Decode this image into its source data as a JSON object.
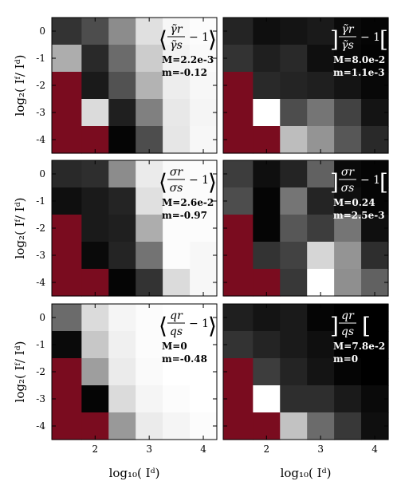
{
  "figure": {
    "ylabel_left": "log₂( Iᶠ/ Iᵈ)",
    "xlabel_bottom": "log₁₀( Iᵈ)"
  },
  "colors": {
    "masked": "#7a0c1f",
    "frame": "#000000"
  },
  "chart_data": [
    {
      "type": "heatmap",
      "row": 0,
      "col": 0,
      "formula": {
        "left": "⟨",
        "num": "γ̃r",
        "den": "γ̃s",
        "tail": "− 1",
        "right": "⟩"
      },
      "stats": [
        "M=2.2e-3",
        "m=-0.12"
      ],
      "theme": "light",
      "x": [
        1.5,
        2.0,
        2.5,
        3.0,
        3.5,
        4.0
      ],
      "y": [
        0,
        -1,
        -2,
        -3,
        -4
      ],
      "xticks": [
        2,
        3,
        4
      ],
      "yticks": [
        0,
        -1,
        -2,
        -3,
        -4
      ],
      "values": [
        [
          0.2,
          0.3,
          0.55,
          0.88,
          0.97,
          0.99
        ],
        [
          0.68,
          0.16,
          0.42,
          0.8,
          0.95,
          0.98
        ],
        [
          null,
          0.1,
          0.32,
          0.7,
          0.93,
          0.97
        ],
        [
          null,
          0.86,
          0.12,
          0.5,
          0.91,
          0.96
        ],
        [
          null,
          null,
          0.02,
          0.3,
          0.9,
          0.97
        ]
      ]
    },
    {
      "type": "heatmap",
      "row": 0,
      "col": 1,
      "formula": {
        "left": "]",
        "num": "γ̃r",
        "den": "γ̃s",
        "tail": "− 1",
        "right": "["
      },
      "stats": [
        "M=8.0e-2",
        "m=1.1e-3"
      ],
      "theme": "dark",
      "x": [
        1.5,
        2.0,
        2.5,
        3.0,
        3.5,
        4.0
      ],
      "y": [
        0,
        -1,
        -2,
        -3,
        -4
      ],
      "xticks": [
        2,
        3,
        4
      ],
      "yticks": [
        0,
        -1,
        -2,
        -3,
        -4
      ],
      "values": [
        [
          0.14,
          0.06,
          0.08,
          0.1,
          0.04,
          0.02
        ],
        [
          0.2,
          0.12,
          0.16,
          0.06,
          0.03,
          0.01
        ],
        [
          null,
          0.16,
          0.14,
          0.12,
          0.08,
          0.03
        ],
        [
          null,
          1.0,
          0.3,
          0.46,
          0.26,
          0.08
        ],
        [
          null,
          null,
          0.74,
          0.58,
          0.34,
          0.16
        ]
      ]
    },
    {
      "type": "heatmap",
      "row": 1,
      "col": 0,
      "formula": {
        "left": "⟨",
        "num": "σr",
        "den": "σs",
        "tail": "− 1",
        "right": "⟩"
      },
      "stats": [
        "M=2.6e-2",
        "m=-0.97"
      ],
      "theme": "light",
      "x": [
        1.5,
        2.0,
        2.5,
        3.0,
        3.5,
        4.0
      ],
      "y": [
        0,
        -1,
        -2,
        -3,
        -4
      ],
      "xticks": [
        2,
        3,
        4
      ],
      "yticks": [
        0,
        -1,
        -2,
        -3,
        -4
      ],
      "values": [
        [
          0.16,
          0.18,
          0.55,
          0.92,
          0.98,
          0.99
        ],
        [
          0.06,
          0.1,
          0.14,
          0.88,
          0.98,
          0.99
        ],
        [
          null,
          0.1,
          0.12,
          0.68,
          0.99,
          0.99
        ],
        [
          null,
          0.04,
          0.14,
          0.45,
          0.99,
          0.97
        ],
        [
          null,
          null,
          0.02,
          0.2,
          0.86,
          0.97
        ]
      ]
    },
    {
      "type": "heatmap",
      "row": 1,
      "col": 1,
      "formula": {
        "left": "]",
        "num": "σr",
        "den": "σs",
        "tail": "− 1",
        "right": "["
      },
      "stats": [
        "M=0.24",
        "m=2.5e-3"
      ],
      "theme": "dark",
      "x": [
        1.5,
        2.0,
        2.5,
        3.0,
        3.5,
        4.0
      ],
      "y": [
        0,
        -1,
        -2,
        -3,
        -4
      ],
      "xticks": [
        2,
        3,
        4
      ],
      "yticks": [
        0,
        -1,
        -2,
        -3,
        -4
      ],
      "values": [
        [
          0.24,
          0.06,
          0.14,
          0.38,
          0.04,
          0.02
        ],
        [
          0.3,
          0.02,
          0.46,
          0.14,
          0.06,
          0.02
        ],
        [
          null,
          0.02,
          0.34,
          0.24,
          0.46,
          0.06
        ],
        [
          null,
          0.2,
          0.26,
          0.84,
          0.58,
          0.18
        ],
        [
          null,
          null,
          0.22,
          1.0,
          0.56,
          0.38
        ]
      ]
    },
    {
      "type": "heatmap",
      "row": 2,
      "col": 0,
      "formula": {
        "left": "⟨",
        "num": "qr",
        "den": "qs",
        "tail": "− 1",
        "right": "⟩"
      },
      "stats": [
        "M=0",
        "m=-0.48"
      ],
      "theme": "light",
      "x": [
        1.5,
        2.0,
        2.5,
        3.0,
        3.5,
        4.0
      ],
      "y": [
        0,
        -1,
        -2,
        -3,
        -4
      ],
      "xticks": [
        2,
        3,
        4
      ],
      "yticks": [
        0,
        -1,
        -2,
        -3,
        -4
      ],
      "values": [
        [
          0.42,
          0.86,
          0.96,
          0.99,
          1.0,
          1.0
        ],
        [
          0.04,
          0.78,
          0.94,
          0.99,
          1.0,
          1.0
        ],
        [
          null,
          0.62,
          0.92,
          0.98,
          1.0,
          1.0
        ],
        [
          null,
          0.02,
          0.86,
          0.96,
          0.99,
          1.0
        ],
        [
          null,
          null,
          0.6,
          0.92,
          0.96,
          0.99
        ]
      ]
    },
    {
      "type": "heatmap",
      "row": 2,
      "col": 1,
      "formula": {
        "left": "]",
        "num": "qr",
        "den": "qs",
        "tail": "",
        "right": "["
      },
      "stats": [
        "M=7.8e-2",
        "m=0"
      ],
      "theme": "dark",
      "x": [
        1.5,
        2.0,
        2.5,
        3.0,
        3.5,
        4.0
      ],
      "y": [
        0,
        -1,
        -2,
        -3,
        -4
      ],
      "xticks": [
        2,
        3,
        4
      ],
      "yticks": [
        0,
        -1,
        -2,
        -3,
        -4
      ],
      "values": [
        [
          0.12,
          0.08,
          0.1,
          0.02,
          0.0,
          0.0
        ],
        [
          0.2,
          0.14,
          0.1,
          0.06,
          0.0,
          0.0
        ],
        [
          null,
          0.24,
          0.14,
          0.08,
          0.02,
          0.0
        ],
        [
          null,
          1.0,
          0.18,
          0.18,
          0.1,
          0.04
        ],
        [
          null,
          null,
          0.76,
          0.42,
          0.22,
          0.06
        ]
      ]
    }
  ]
}
